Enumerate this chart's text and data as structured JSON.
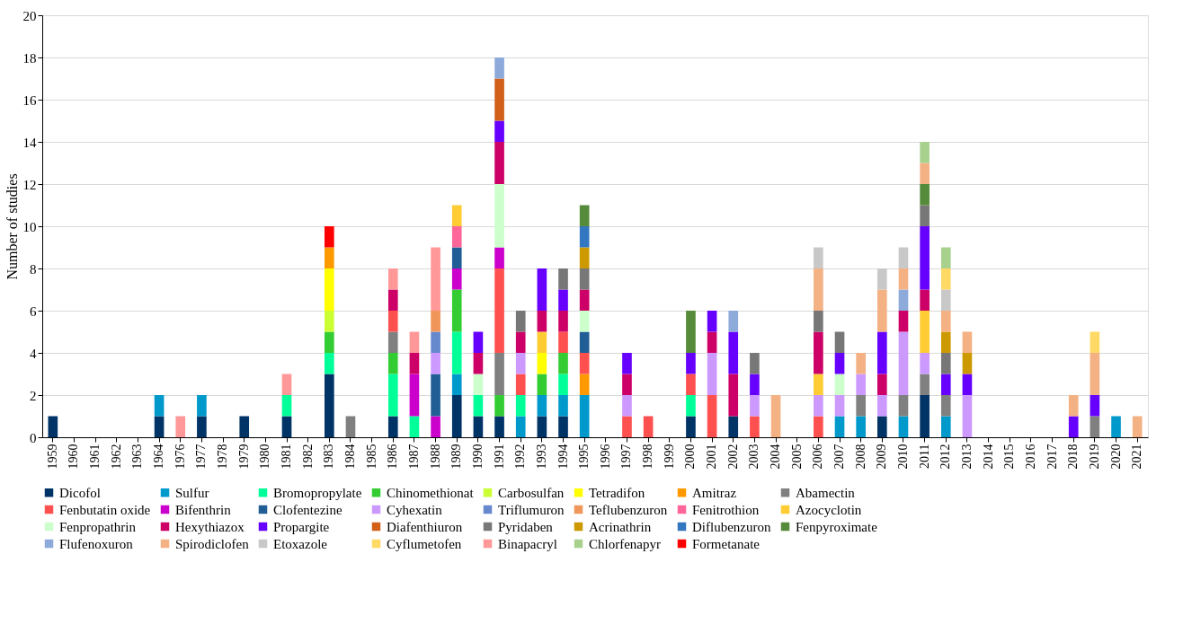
{
  "chart_data": {
    "type": "bar",
    "stacked": true,
    "ylabel": "Number of studies",
    "ylim": [
      0,
      20
    ],
    "yticks": [
      0,
      2,
      4,
      6,
      8,
      10,
      12,
      14,
      16,
      18,
      20
    ],
    "grid": "y",
    "legend": "bottom",
    "categories": [
      "1959",
      "1960",
      "1961",
      "1962",
      "1963",
      "1964",
      "1976",
      "1977",
      "1978",
      "1979",
      "1980",
      "1981",
      "1982",
      "1983",
      "1984",
      "1985",
      "1986",
      "1987",
      "1988",
      "1989",
      "1990",
      "1991",
      "1992",
      "1993",
      "1994",
      "1995",
      "1996",
      "1997",
      "1998",
      "1999",
      "2000",
      "2001",
      "2002",
      "2003",
      "2004",
      "2005",
      "2006",
      "2007",
      "2008",
      "2009",
      "2010",
      "2011",
      "2012",
      "2013",
      "2014",
      "2015",
      "2016",
      "2017",
      "2018",
      "2019",
      "2020",
      "2021"
    ],
    "series": [
      {
        "name": "Dicofol",
        "color": "#003366",
        "values": [
          1,
          null,
          null,
          null,
          null,
          1,
          null,
          1,
          null,
          1,
          null,
          1,
          null,
          3,
          null,
          null,
          1,
          null,
          null,
          2,
          1,
          1,
          null,
          1,
          1,
          null,
          null,
          null,
          null,
          null,
          1,
          null,
          1,
          null,
          null,
          null,
          null,
          null,
          null,
          1,
          null,
          2,
          null,
          null,
          null,
          null,
          null,
          null,
          null,
          null,
          null,
          null
        ]
      },
      {
        "name": "Sulfur",
        "color": "#0099cc",
        "values": [
          null,
          null,
          null,
          null,
          null,
          1,
          null,
          1,
          null,
          null,
          null,
          null,
          null,
          null,
          null,
          null,
          null,
          null,
          null,
          1,
          null,
          null,
          1,
          1,
          1,
          2,
          null,
          null,
          null,
          null,
          null,
          null,
          null,
          null,
          null,
          null,
          null,
          1,
          1,
          null,
          1,
          null,
          1,
          null,
          null,
          null,
          null,
          null,
          null,
          null,
          1,
          null
        ]
      },
      {
        "name": "Bromopropylate",
        "color": "#00ff99",
        "values": [
          null,
          null,
          null,
          null,
          null,
          null,
          null,
          null,
          null,
          null,
          null,
          1,
          null,
          1,
          null,
          null,
          2,
          1,
          null,
          2,
          1,
          null,
          1,
          null,
          1,
          null,
          null,
          null,
          null,
          null,
          1,
          null,
          null,
          null,
          null,
          null,
          null,
          null,
          null,
          null,
          null,
          null,
          null,
          null,
          null,
          null,
          null,
          null,
          null,
          null,
          null,
          null
        ]
      },
      {
        "name": "Chinomethionat",
        "color": "#33cc33",
        "values": [
          null,
          null,
          null,
          null,
          null,
          null,
          null,
          null,
          null,
          null,
          null,
          null,
          null,
          1,
          null,
          null,
          1,
          null,
          null,
          2,
          null,
          1,
          null,
          1,
          1,
          null,
          null,
          null,
          null,
          null,
          null,
          null,
          null,
          null,
          null,
          null,
          null,
          null,
          null,
          null,
          null,
          null,
          null,
          null,
          null,
          null,
          null,
          null,
          null,
          null,
          null,
          null
        ]
      },
      {
        "name": "Carbosulfan",
        "color": "#ccff33",
        "values": [
          null,
          null,
          null,
          null,
          null,
          null,
          null,
          null,
          null,
          null,
          null,
          null,
          null,
          1,
          null,
          null,
          null,
          null,
          null,
          null,
          null,
          null,
          null,
          null,
          null,
          null,
          null,
          null,
          null,
          null,
          null,
          null,
          null,
          null,
          null,
          null,
          null,
          null,
          null,
          null,
          null,
          null,
          null,
          null,
          null,
          null,
          null,
          null,
          null,
          null,
          null,
          null
        ]
      },
      {
        "name": "Tetradifon",
        "color": "#ffff00",
        "values": [
          null,
          null,
          null,
          null,
          null,
          null,
          null,
          null,
          null,
          null,
          null,
          null,
          null,
          2,
          null,
          null,
          null,
          null,
          null,
          null,
          null,
          null,
          null,
          1,
          null,
          null,
          null,
          null,
          null,
          null,
          null,
          null,
          null,
          null,
          null,
          null,
          null,
          null,
          null,
          null,
          null,
          null,
          null,
          null,
          null,
          null,
          null,
          null,
          null,
          null,
          null,
          null
        ]
      },
      {
        "name": "Amitraz",
        "color": "#ff9900",
        "values": [
          null,
          null,
          null,
          null,
          null,
          null,
          null,
          null,
          null,
          null,
          null,
          null,
          null,
          1,
          null,
          null,
          null,
          null,
          null,
          null,
          null,
          null,
          null,
          null,
          null,
          1,
          null,
          null,
          null,
          null,
          null,
          null,
          null,
          null,
          null,
          null,
          null,
          null,
          null,
          null,
          null,
          null,
          null,
          null,
          null,
          null,
          null,
          null,
          null,
          null,
          null,
          null
        ]
      },
      {
        "name": "Abamectin",
        "color": "#808080",
        "values": [
          null,
          null,
          null,
          null,
          null,
          null,
          null,
          null,
          null,
          null,
          null,
          null,
          null,
          null,
          1,
          null,
          1,
          null,
          null,
          null,
          null,
          2,
          null,
          null,
          null,
          null,
          null,
          null,
          null,
          null,
          null,
          null,
          null,
          null,
          null,
          null,
          null,
          null,
          1,
          null,
          1,
          1,
          1,
          null,
          null,
          null,
          null,
          null,
          null,
          1,
          null,
          null
        ]
      },
      {
        "name": "Fenbutatin oxide",
        "color": "#ff5050",
        "values": [
          null,
          null,
          null,
          null,
          null,
          null,
          null,
          null,
          null,
          null,
          null,
          null,
          null,
          null,
          null,
          null,
          1,
          null,
          null,
          null,
          null,
          4,
          1,
          null,
          1,
          1,
          null,
          1,
          1,
          null,
          1,
          2,
          null,
          1,
          null,
          null,
          1,
          null,
          null,
          null,
          null,
          null,
          null,
          null,
          null,
          null,
          null,
          null,
          null,
          null,
          null,
          null
        ]
      },
      {
        "name": "Bifenthrin",
        "color": "#cc00cc",
        "values": [
          null,
          null,
          null,
          null,
          null,
          null,
          null,
          null,
          null,
          null,
          null,
          null,
          null,
          null,
          null,
          null,
          null,
          2,
          1,
          1,
          null,
          1,
          null,
          null,
          null,
          null,
          null,
          null,
          null,
          null,
          null,
          null,
          null,
          null,
          null,
          null,
          null,
          null,
          null,
          null,
          null,
          null,
          null,
          null,
          null,
          null,
          null,
          null,
          null,
          null,
          null,
          null
        ]
      },
      {
        "name": "Clofentezine",
        "color": "#215e96",
        "values": [
          null,
          null,
          null,
          null,
          null,
          null,
          null,
          null,
          null,
          null,
          null,
          null,
          null,
          null,
          null,
          null,
          null,
          null,
          2,
          1,
          null,
          null,
          null,
          null,
          null,
          1,
          null,
          null,
          null,
          null,
          null,
          null,
          null,
          null,
          null,
          null,
          null,
          null,
          null,
          null,
          null,
          null,
          null,
          null,
          null,
          null,
          null,
          null,
          null,
          null,
          null,
          null
        ]
      },
      {
        "name": "Cyhexatin",
        "color": "#cc99ff",
        "values": [
          null,
          null,
          null,
          null,
          null,
          null,
          null,
          null,
          null,
          null,
          null,
          null,
          null,
          null,
          null,
          null,
          null,
          null,
          1,
          null,
          null,
          null,
          1,
          null,
          null,
          null,
          null,
          1,
          null,
          null,
          null,
          2,
          null,
          1,
          null,
          null,
          1,
          1,
          1,
          1,
          3,
          1,
          null,
          2,
          null,
          null,
          null,
          null,
          null,
          null,
          null,
          null
        ]
      },
      {
        "name": "Triflumuron",
        "color": "#6688cc",
        "values": [
          null,
          null,
          null,
          null,
          null,
          null,
          null,
          null,
          null,
          null,
          null,
          null,
          null,
          null,
          null,
          null,
          null,
          null,
          1,
          null,
          null,
          null,
          null,
          null,
          null,
          null,
          null,
          null,
          null,
          null,
          null,
          null,
          null,
          null,
          null,
          null,
          null,
          null,
          null,
          null,
          null,
          null,
          null,
          null,
          null,
          null,
          null,
          null,
          null,
          null,
          null,
          null
        ]
      },
      {
        "name": "Teflubenzuron",
        "color": "#f0965a",
        "values": [
          null,
          null,
          null,
          null,
          null,
          null,
          null,
          null,
          null,
          null,
          null,
          null,
          null,
          null,
          null,
          null,
          null,
          null,
          1,
          null,
          null,
          null,
          null,
          null,
          null,
          null,
          null,
          null,
          null,
          null,
          null,
          null,
          null,
          null,
          null,
          null,
          null,
          null,
          null,
          null,
          null,
          null,
          null,
          null,
          null,
          null,
          null,
          null,
          null,
          null,
          null,
          null
        ]
      },
      {
        "name": "Fenitrothion",
        "color": "#ff6699",
        "values": [
          null,
          null,
          null,
          null,
          null,
          null,
          null,
          null,
          null,
          null,
          null,
          null,
          null,
          null,
          null,
          null,
          null,
          null,
          null,
          1,
          null,
          null,
          null,
          null,
          null,
          null,
          null,
          null,
          null,
          null,
          null,
          null,
          null,
          null,
          null,
          null,
          null,
          null,
          null,
          null,
          null,
          null,
          null,
          null,
          null,
          null,
          null,
          null,
          null,
          null,
          null,
          null
        ]
      },
      {
        "name": "Azocyclotin",
        "color": "#ffcc33",
        "values": [
          null,
          null,
          null,
          null,
          null,
          null,
          null,
          null,
          null,
          null,
          null,
          null,
          null,
          null,
          null,
          null,
          null,
          null,
          null,
          1,
          null,
          null,
          null,
          1,
          null,
          null,
          null,
          null,
          null,
          null,
          null,
          null,
          null,
          null,
          null,
          null,
          1,
          null,
          null,
          null,
          null,
          2,
          null,
          null,
          null,
          null,
          null,
          null,
          null,
          null,
          null,
          null
        ]
      },
      {
        "name": "Fenpropathrin",
        "color": "#ccffcc",
        "values": [
          null,
          null,
          null,
          null,
          null,
          null,
          null,
          null,
          null,
          null,
          null,
          null,
          null,
          null,
          null,
          null,
          null,
          null,
          null,
          null,
          1,
          3,
          null,
          null,
          null,
          1,
          null,
          null,
          null,
          null,
          null,
          null,
          null,
          null,
          null,
          null,
          null,
          1,
          null,
          null,
          null,
          null,
          null,
          null,
          null,
          null,
          null,
          null,
          null,
          null,
          null,
          null
        ]
      },
      {
        "name": "Hexythiazox",
        "color": "#cc0066",
        "values": [
          null,
          null,
          null,
          null,
          null,
          null,
          null,
          null,
          null,
          null,
          null,
          null,
          null,
          null,
          null,
          null,
          1,
          1,
          null,
          null,
          1,
          2,
          1,
          1,
          1,
          1,
          null,
          1,
          null,
          null,
          null,
          1,
          2,
          null,
          null,
          null,
          2,
          null,
          null,
          1,
          1,
          1,
          null,
          null,
          null,
          null,
          null,
          null,
          null,
          null,
          null,
          null
        ]
      },
      {
        "name": "Propargite",
        "color": "#6600ff",
        "values": [
          null,
          null,
          null,
          null,
          null,
          null,
          null,
          null,
          null,
          null,
          null,
          null,
          null,
          null,
          null,
          null,
          null,
          null,
          null,
          null,
          1,
          1,
          null,
          2,
          1,
          null,
          null,
          1,
          null,
          null,
          1,
          1,
          2,
          1,
          null,
          null,
          null,
          1,
          null,
          2,
          null,
          3,
          1,
          1,
          null,
          null,
          null,
          null,
          1,
          1,
          null,
          null
        ]
      },
      {
        "name": "Diafenthiuron",
        "color": "#d2601a",
        "values": [
          null,
          null,
          null,
          null,
          null,
          null,
          null,
          null,
          null,
          null,
          null,
          null,
          null,
          null,
          null,
          null,
          null,
          null,
          null,
          null,
          null,
          2,
          null,
          null,
          null,
          null,
          null,
          null,
          null,
          null,
          null,
          null,
          null,
          null,
          null,
          null,
          null,
          null,
          null,
          null,
          null,
          null,
          null,
          null,
          null,
          null,
          null,
          null,
          null,
          null,
          null,
          null
        ]
      },
      {
        "name": "Pyridaben",
        "color": "#777777",
        "values": [
          null,
          null,
          null,
          null,
          null,
          null,
          null,
          null,
          null,
          null,
          null,
          null,
          null,
          null,
          null,
          null,
          null,
          null,
          null,
          null,
          null,
          null,
          1,
          null,
          1,
          1,
          null,
          null,
          null,
          null,
          null,
          null,
          null,
          1,
          null,
          null,
          1,
          1,
          null,
          null,
          null,
          1,
          1,
          null,
          null,
          null,
          null,
          null,
          null,
          null,
          null,
          null
        ]
      },
      {
        "name": "Acrinathrin",
        "color": "#cc9900",
        "values": [
          null,
          null,
          null,
          null,
          null,
          null,
          null,
          null,
          null,
          null,
          null,
          null,
          null,
          null,
          null,
          null,
          null,
          null,
          null,
          null,
          null,
          null,
          null,
          null,
          null,
          1,
          null,
          null,
          null,
          null,
          null,
          null,
          null,
          null,
          null,
          null,
          null,
          null,
          null,
          null,
          null,
          null,
          1,
          1,
          null,
          null,
          null,
          null,
          null,
          null,
          null,
          null
        ]
      },
      {
        "name": "Diflubenzuron",
        "color": "#3377c0",
        "values": [
          null,
          null,
          null,
          null,
          null,
          null,
          null,
          null,
          null,
          null,
          null,
          null,
          null,
          null,
          null,
          null,
          null,
          null,
          null,
          null,
          null,
          null,
          null,
          null,
          null,
          1,
          null,
          null,
          null,
          null,
          null,
          null,
          null,
          null,
          null,
          null,
          null,
          null,
          null,
          null,
          null,
          null,
          null,
          null,
          null,
          null,
          null,
          null,
          null,
          null,
          null,
          null
        ]
      },
      {
        "name": "Fenpyroximate",
        "color": "#558b3a",
        "values": [
          null,
          null,
          null,
          null,
          null,
          null,
          null,
          null,
          null,
          null,
          null,
          null,
          null,
          null,
          null,
          null,
          null,
          null,
          null,
          null,
          null,
          null,
          null,
          null,
          null,
          1,
          null,
          null,
          null,
          null,
          2,
          null,
          null,
          null,
          null,
          null,
          null,
          null,
          null,
          null,
          null,
          1,
          null,
          null,
          null,
          null,
          null,
          null,
          null,
          null,
          null,
          null
        ]
      },
      {
        "name": "Flufenoxuron",
        "color": "#8eaadb",
        "values": [
          null,
          null,
          null,
          null,
          null,
          null,
          null,
          null,
          null,
          null,
          null,
          null,
          null,
          null,
          null,
          null,
          null,
          null,
          null,
          null,
          null,
          1,
          null,
          null,
          null,
          null,
          null,
          null,
          null,
          null,
          null,
          null,
          1,
          null,
          null,
          null,
          null,
          null,
          null,
          null,
          1,
          null,
          null,
          null,
          null,
          null,
          null,
          null,
          null,
          null,
          null,
          null
        ]
      },
      {
        "name": "Spirodiclofen",
        "color": "#f4b183",
        "values": [
          null,
          null,
          null,
          null,
          null,
          null,
          null,
          null,
          null,
          null,
          null,
          null,
          null,
          null,
          null,
          null,
          null,
          null,
          null,
          null,
          null,
          null,
          null,
          null,
          null,
          null,
          null,
          null,
          null,
          null,
          null,
          null,
          null,
          null,
          2,
          null,
          2,
          null,
          1,
          2,
          1,
          1,
          1,
          1,
          null,
          null,
          null,
          null,
          1,
          2,
          null,
          1
        ]
      },
      {
        "name": "Etoxazole",
        "color": "#c8c8c8",
        "values": [
          null,
          null,
          null,
          null,
          null,
          null,
          null,
          null,
          null,
          null,
          null,
          null,
          null,
          null,
          null,
          null,
          null,
          null,
          null,
          null,
          null,
          null,
          null,
          null,
          null,
          null,
          null,
          null,
          null,
          null,
          null,
          null,
          null,
          null,
          null,
          null,
          1,
          null,
          null,
          1,
          1,
          null,
          1,
          null,
          null,
          null,
          null,
          null,
          null,
          null,
          null,
          null
        ]
      },
      {
        "name": "Cyflumetofen",
        "color": "#ffd966",
        "values": [
          null,
          null,
          null,
          null,
          null,
          null,
          null,
          null,
          null,
          null,
          null,
          null,
          null,
          null,
          null,
          null,
          null,
          null,
          null,
          null,
          null,
          null,
          null,
          null,
          null,
          null,
          null,
          null,
          null,
          null,
          null,
          null,
          null,
          null,
          null,
          null,
          null,
          null,
          null,
          null,
          null,
          null,
          1,
          null,
          null,
          null,
          null,
          null,
          null,
          1,
          null,
          null
        ]
      },
      {
        "name": "Binapacryl",
        "color": "#ff9999",
        "values": [
          null,
          null,
          null,
          null,
          null,
          null,
          1,
          null,
          null,
          null,
          null,
          1,
          null,
          null,
          null,
          null,
          1,
          1,
          3,
          null,
          null,
          null,
          null,
          null,
          null,
          null,
          null,
          null,
          null,
          null,
          null,
          null,
          null,
          null,
          null,
          null,
          null,
          null,
          null,
          null,
          null,
          null,
          null,
          null,
          null,
          null,
          null,
          null,
          null,
          null,
          null,
          null
        ]
      },
      {
        "name": "Chlorfenapyr",
        "color": "#a9d18e",
        "values": [
          null,
          null,
          null,
          null,
          null,
          null,
          null,
          null,
          null,
          null,
          null,
          null,
          null,
          null,
          null,
          null,
          null,
          null,
          null,
          null,
          null,
          null,
          null,
          null,
          null,
          null,
          null,
          null,
          null,
          null,
          null,
          null,
          null,
          null,
          null,
          null,
          null,
          null,
          null,
          null,
          null,
          1,
          1,
          null,
          null,
          null,
          null,
          null,
          null,
          null,
          null,
          null
        ]
      },
      {
        "name": "Formetanate",
        "color": "#ff0000",
        "values": [
          null,
          null,
          null,
          null,
          null,
          null,
          null,
          null,
          null,
          null,
          null,
          null,
          null,
          1,
          null,
          null,
          null,
          null,
          null,
          null,
          null,
          null,
          null,
          null,
          null,
          null,
          null,
          null,
          null,
          null,
          null,
          null,
          null,
          null,
          null,
          null,
          null,
          null,
          null,
          null,
          null,
          null,
          null,
          null,
          null,
          null,
          null,
          null,
          null,
          null,
          null,
          null
        ]
      }
    ]
  }
}
